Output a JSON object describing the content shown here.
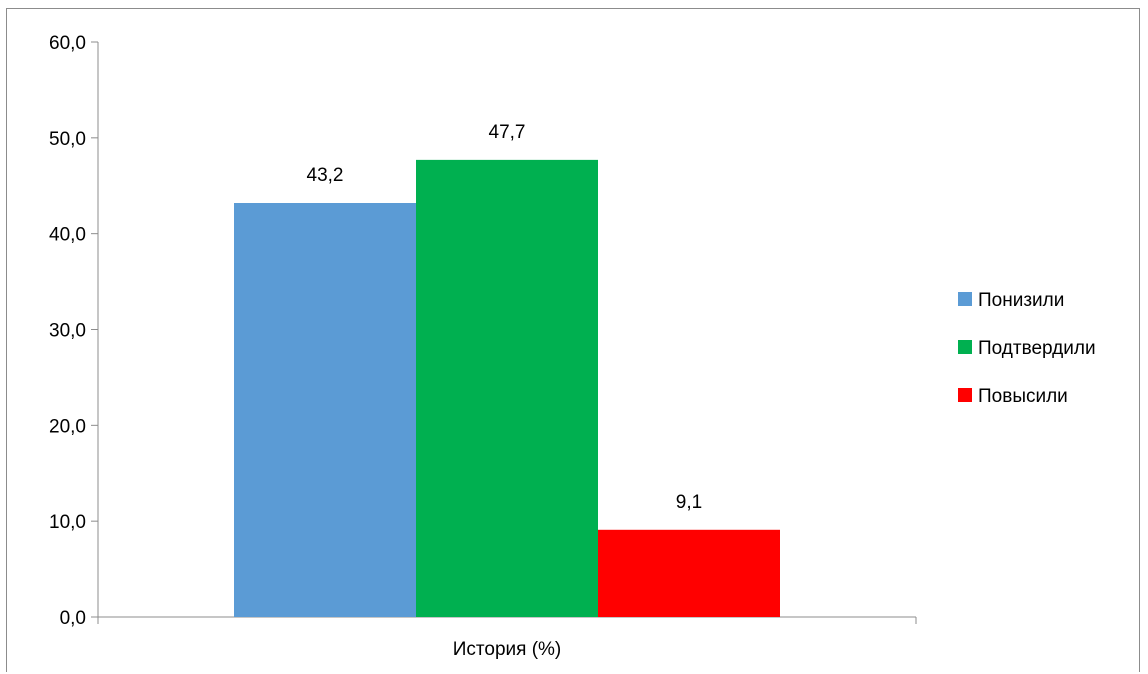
{
  "chart_data": {
    "type": "bar",
    "categories": [
      "История (%)"
    ],
    "series": [
      {
        "name": "Понизили",
        "values": [
          43.2
        ],
        "label": "43,2",
        "color": "#5b9bd5"
      },
      {
        "name": "Подтвердили",
        "values": [
          47.7
        ],
        "label": "47,7",
        "color": "#00b050"
      },
      {
        "name": "Повысили",
        "values": [
          9.1
        ],
        "label": "9,1",
        "color": "#ff0000"
      }
    ],
    "title": "",
    "xlabel": "",
    "ylabel": "",
    "ylim": [
      0,
      60
    ],
    "yticks": [
      0,
      10,
      20,
      30,
      40,
      50,
      60
    ],
    "ytick_labels": [
      "0,0",
      "10,0",
      "20,0",
      "30,0",
      "40,0",
      "50,0",
      "60,0"
    ],
    "grid": false,
    "legend_position": "right"
  }
}
